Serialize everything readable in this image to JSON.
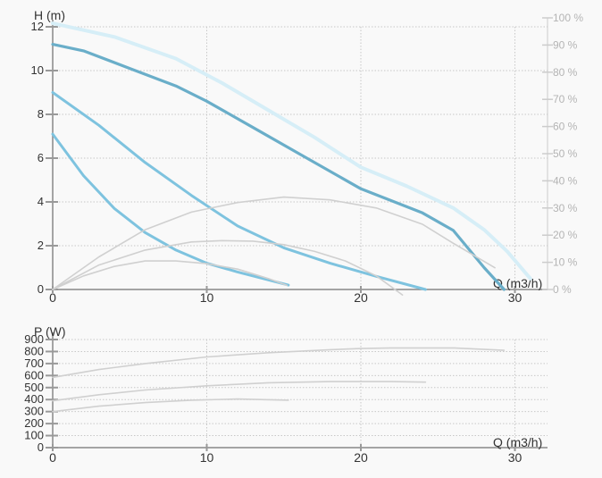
{
  "chart_data": [
    {
      "type": "line",
      "xlabel": "Q (m3/h)",
      "ylabel": "H (m)",
      "y2label": "",
      "xlim": [
        0,
        31
      ],
      "ylim": [
        0,
        12
      ],
      "y2lim": [
        0,
        100
      ],
      "grid": true,
      "x_ticks": [
        "0",
        "10",
        "20",
        "30"
      ],
      "y_ticks": [
        "0",
        "2",
        "4",
        "6",
        "8",
        "10",
        "12"
      ],
      "y2_ticks": [
        "0 %",
        "10 %",
        "20 %",
        "30 %",
        "40 %",
        "50 %",
        "60 %",
        "70 %",
        "80 %",
        "90 %",
        "100 %"
      ],
      "series": [
        {
          "kind": "head",
          "color": "#6aaec9",
          "width": 3.2,
          "x": [
            0,
            2,
            5,
            8,
            10,
            13,
            16,
            20,
            24,
            26,
            28,
            29.3
          ],
          "y": [
            11.2,
            10.9,
            10.1,
            9.3,
            8.6,
            7.4,
            6.2,
            4.6,
            3.5,
            2.7,
            1.0,
            0
          ]
        },
        {
          "kind": "head",
          "color": "#7ec3df",
          "width": 3,
          "x": [
            0,
            3,
            6,
            9,
            12,
            15,
            18,
            21,
            24.2
          ],
          "y": [
            9.0,
            7.5,
            5.8,
            4.3,
            2.9,
            1.9,
            1.2,
            0.6,
            0
          ]
        },
        {
          "kind": "head",
          "color": "#7ec3df",
          "width": 3,
          "x": [
            0,
            2,
            4,
            6,
            8,
            10,
            12,
            15.3
          ],
          "y": [
            7.1,
            5.2,
            3.7,
            2.6,
            1.8,
            1.2,
            0.8,
            0.2
          ]
        },
        {
          "kind": "efficiency",
          "color": "#d6eef7",
          "width": 4,
          "x": [
            0,
            4,
            8,
            11,
            14,
            17,
            20,
            23,
            26,
            28,
            29.5,
            31
          ],
          "y": [
            98,
            93,
            85,
            76,
            66,
            56,
            45,
            38,
            30,
            22,
            14,
            4
          ]
        },
        {
          "kind": "efficiency",
          "color": "#d0d0d0",
          "width": 1.6,
          "x": [
            0,
            3,
            6,
            9,
            12,
            15,
            18,
            21,
            24,
            26,
            28.7
          ],
          "y": [
            0,
            12,
            22,
            28.5,
            32,
            34,
            33,
            30,
            24,
            17,
            8
          ]
        },
        {
          "kind": "efficiency",
          "color": "#d0d0d0",
          "width": 1.6,
          "x": [
            0,
            3,
            6,
            9,
            11,
            13,
            15,
            17,
            19,
            21,
            22.7
          ],
          "y": [
            0,
            9,
            14.5,
            17.5,
            18,
            17.8,
            16.5,
            14,
            10.5,
            5,
            -2
          ]
        },
        {
          "kind": "efficiency",
          "color": "#d0d0d0",
          "width": 1.6,
          "x": [
            0,
            2,
            4,
            6,
            8,
            10,
            12,
            14,
            15.2
          ],
          "y": [
            0,
            5,
            8.5,
            10.5,
            10.5,
            9.5,
            7.5,
            4,
            1.5
          ]
        }
      ]
    },
    {
      "type": "line",
      "xlabel": "Q (m3/h)",
      "ylabel": "P (W)",
      "xlim": [
        0,
        31
      ],
      "ylim": [
        0,
        900
      ],
      "grid": true,
      "x_ticks": [
        "0",
        "10",
        "20",
        "30"
      ],
      "y_ticks": [
        "0",
        "100",
        "200",
        "300",
        "400",
        "500",
        "600",
        "700",
        "800",
        "900"
      ],
      "series": [
        {
          "color": "#d0d0d0",
          "x": [
            0,
            3,
            6,
            10,
            14,
            18,
            20,
            22,
            26,
            29.3
          ],
          "y": [
            585,
            650,
            700,
            755,
            790,
            815,
            825,
            830,
            830,
            810
          ]
        },
        {
          "color": "#d0d0d0",
          "x": [
            0,
            3,
            6,
            10,
            14,
            18,
            22,
            24.2
          ],
          "y": [
            390,
            440,
            480,
            515,
            540,
            550,
            550,
            545
          ]
        },
        {
          "color": "#d0d0d0",
          "x": [
            0,
            3,
            6,
            9,
            12,
            15.3
          ],
          "y": [
            300,
            345,
            375,
            395,
            405,
            395
          ]
        }
      ]
    }
  ]
}
